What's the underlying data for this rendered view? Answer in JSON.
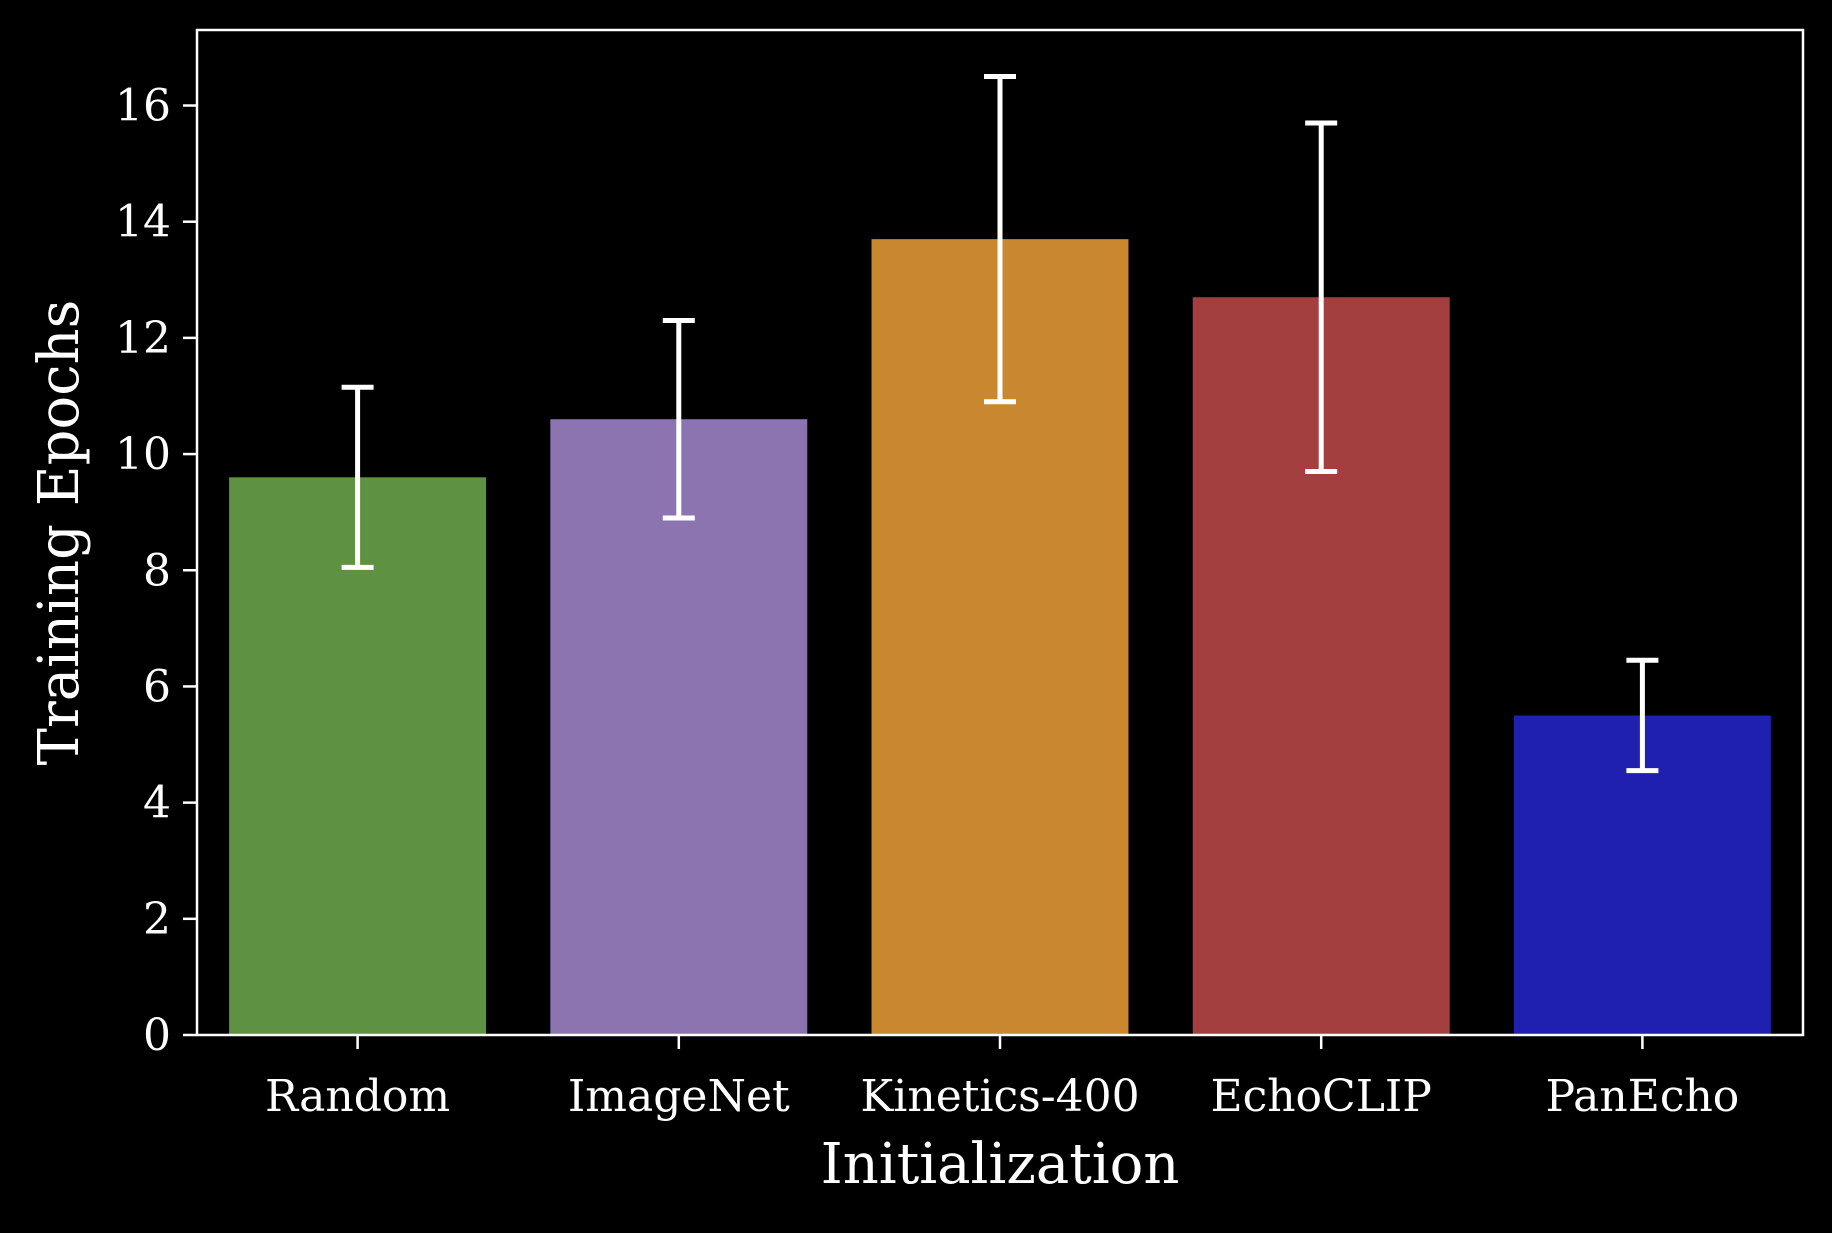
{
  "chart_data": {
    "type": "bar",
    "xlabel": "Initialization",
    "ylabel": "Training Epochs",
    "categories": [
      "Random",
      "ImageNet",
      "Kinetics-400",
      "EchoCLIP",
      "PanEcho"
    ],
    "values": [
      9.6,
      10.6,
      13.7,
      12.7,
      5.5
    ],
    "error_low": [
      8.05,
      8.9,
      10.9,
      9.7,
      4.55
    ],
    "error_high": [
      11.15,
      12.3,
      16.5,
      15.7,
      6.45
    ],
    "colors": [
      "#5e9142",
      "#8b74b0",
      "#c98730",
      "#a33f3f",
      "#1f1fb0"
    ],
    "ylim": [
      0,
      17.3
    ],
    "yticks": [
      0,
      2,
      4,
      6,
      8,
      10,
      12,
      14,
      16
    ],
    "grid": false,
    "background": "#000000",
    "foreground": "#ffffff"
  }
}
